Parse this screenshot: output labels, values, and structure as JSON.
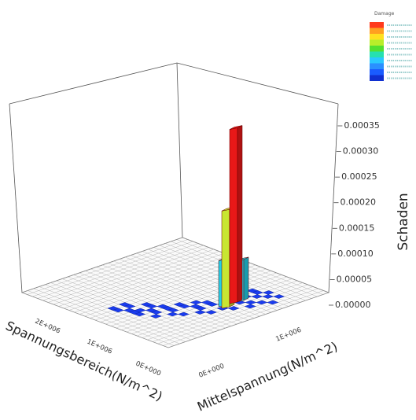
{
  "chart_data": {
    "type": "bar3d",
    "title": "",
    "xlabel": "Spannungsbereich(N/m^2)",
    "ylabel": "Mittelspannung(N/m^2)",
    "zlabel": "Schaden",
    "x_ticks": [
      "2E+006",
      "1E+006",
      "0E+000"
    ],
    "y_ticks": [
      "0E+000",
      "1E+006"
    ],
    "z_ticks": [
      "0.00000",
      "0.00005",
      "0.00010",
      "0.00015",
      "0.00020",
      "0.00025",
      "0.00030",
      "0.00035"
    ],
    "zlim": [
      0,
      0.00035
    ],
    "grid": true,
    "legend": {
      "title": "Damage",
      "position": "top-right",
      "colors": [
        "#ff3a1c",
        "#ffa020",
        "#ffe020",
        "#b8ee2a",
        "#52e030",
        "#26e0b0",
        "#2ac8ff",
        "#2a90ff",
        "#1a5cff",
        "#1030d0"
      ]
    },
    "tall_bars": [
      {
        "label": "red",
        "value": 0.00034,
        "color": "#e81818"
      },
      {
        "label": "yellow-green",
        "value": 0.00019,
        "color": "#c8e632"
      },
      {
        "label": "cyan",
        "value": 9e-05,
        "color": "#20d0e8"
      },
      {
        "label": "cyan-2",
        "value": 8e-05,
        "color": "#20d0e8"
      }
    ],
    "low_bars_color": "#1a3cf0"
  }
}
